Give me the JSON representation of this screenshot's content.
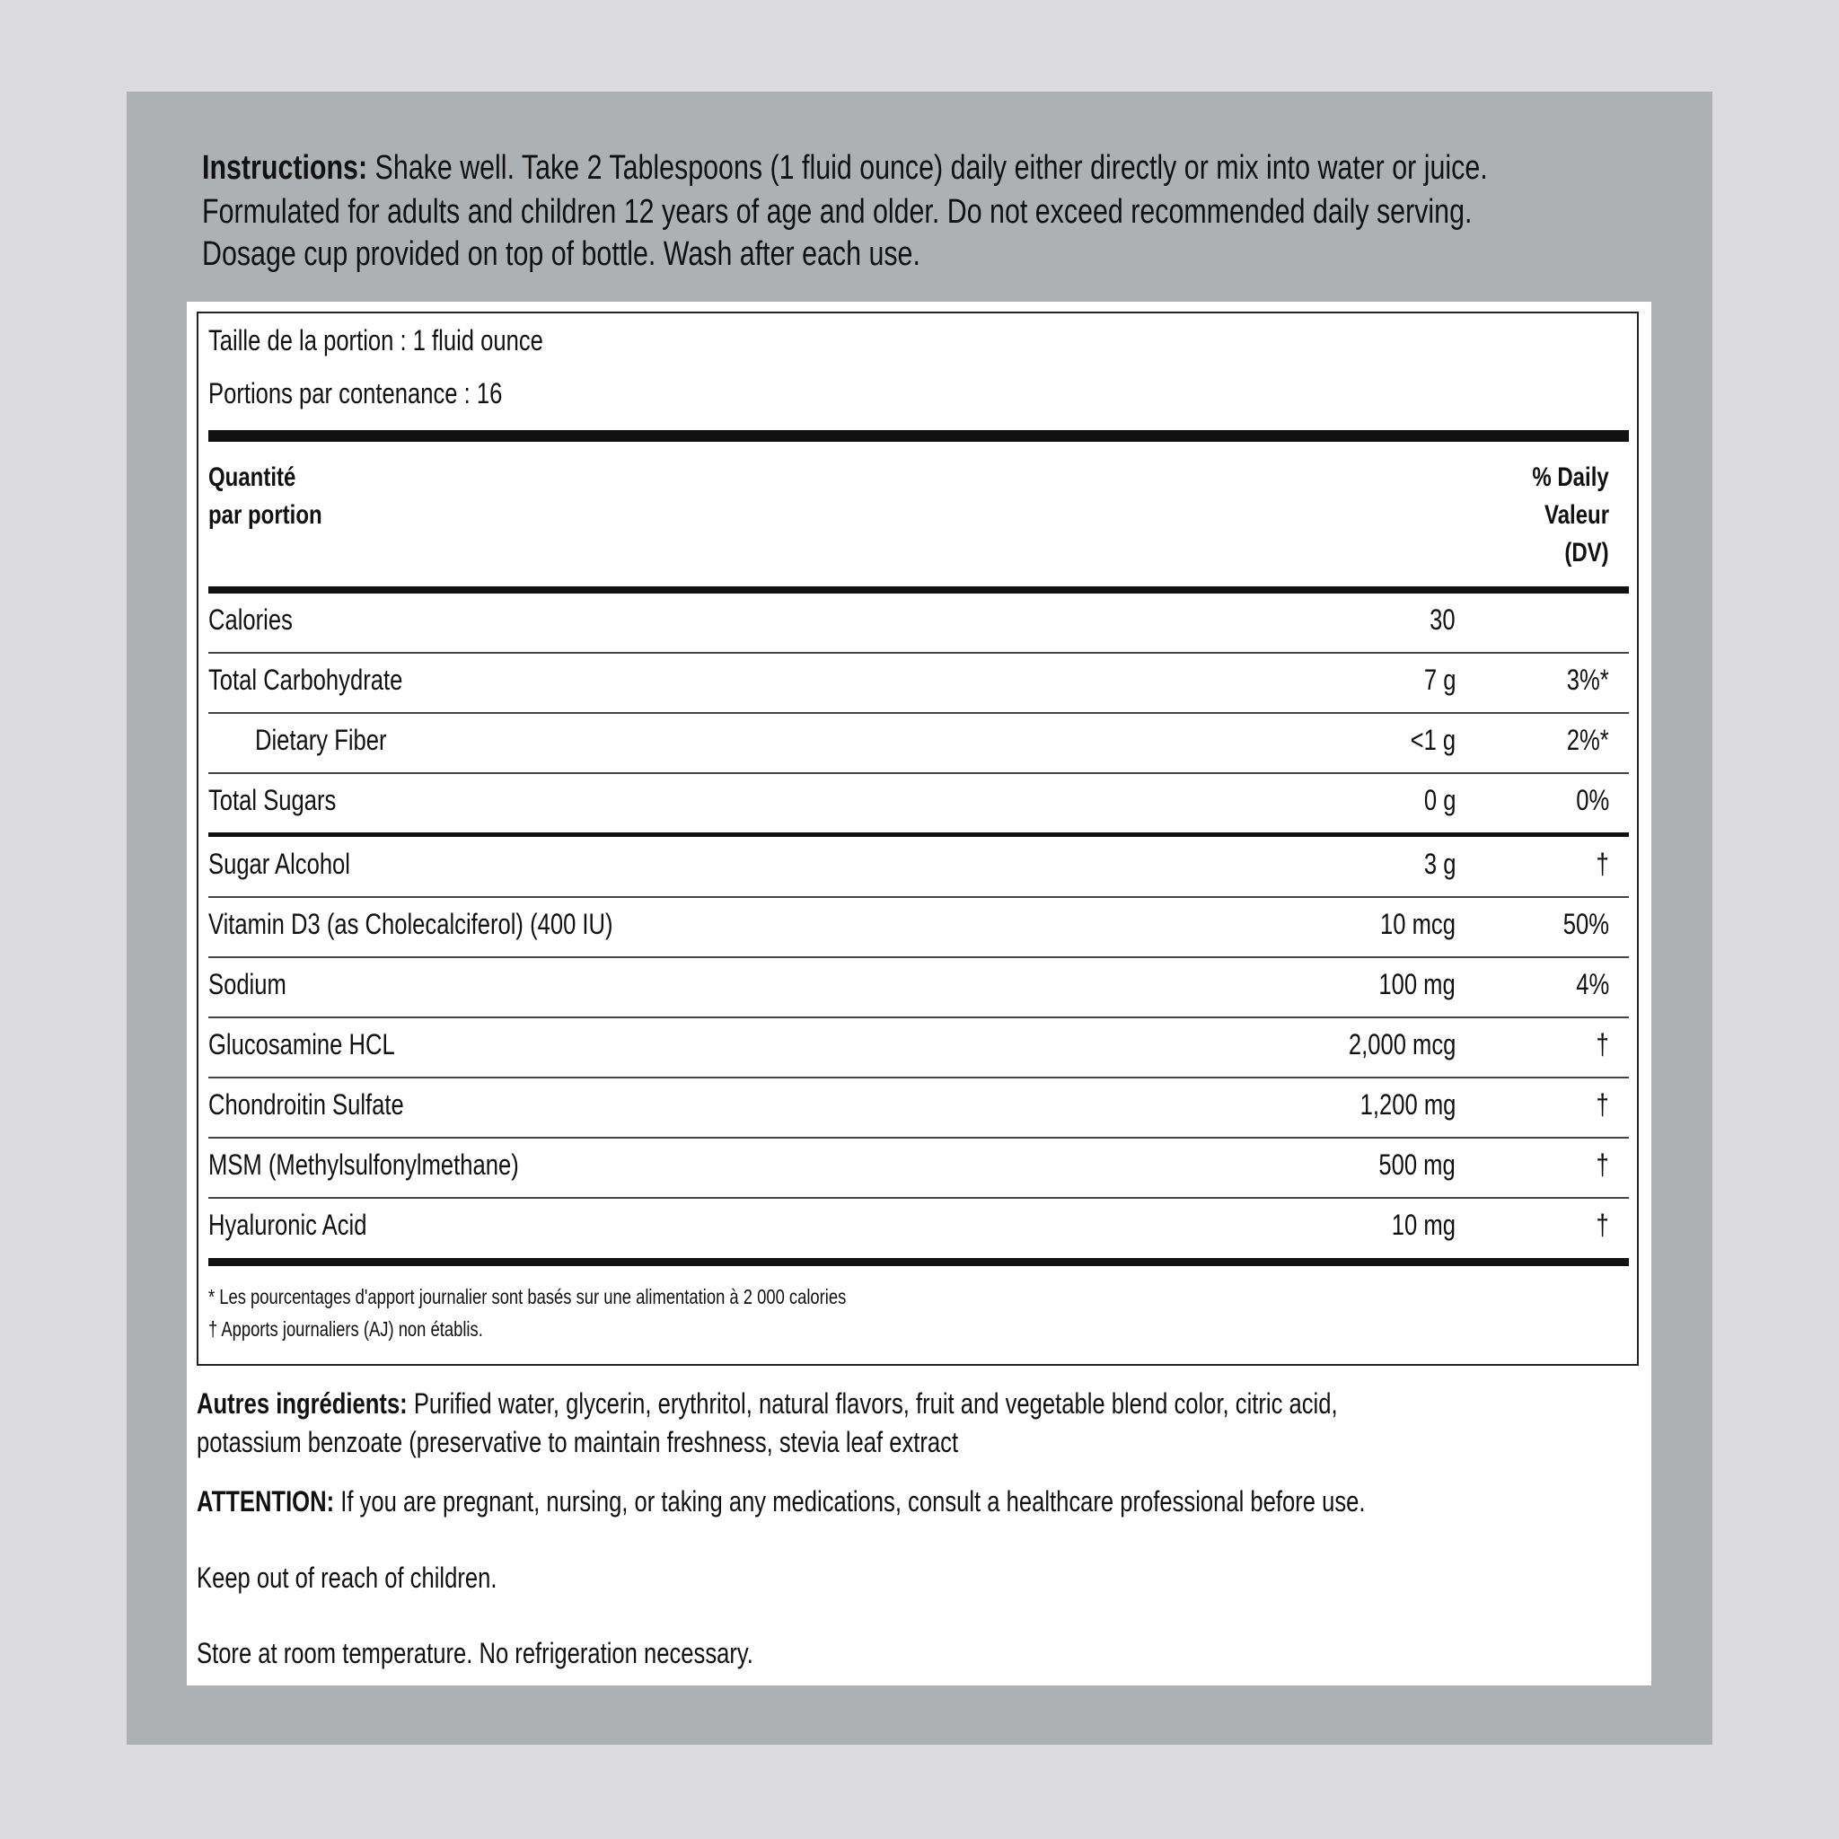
{
  "instructions": {
    "label": "Instructions:",
    "lines": [
      "Shake well. Take 2 Tablespoons (1 fluid ounce) daily either directly or mix into water or juice.",
      "Formulated for adults and children 12 years of age and older. Do not exceed recommended daily serving.",
      "Dosage cup provided on top of bottle. Wash after each use."
    ]
  },
  "facts": {
    "serving_size": "Taille de la portion : 1 fluid ounce",
    "servings": "Portions par contenance : 16",
    "header_left": [
      "Quantité",
      "par portion"
    ],
    "header_right": [
      "% Daily",
      "Valeur",
      "(DV)"
    ],
    "rows": [
      {
        "name": "Calories",
        "amount": "30",
        "dv": ""
      },
      {
        "name": "Total Carbohydrate",
        "amount": "7 g",
        "dv": "3%*"
      },
      {
        "name": "Dietary Fiber",
        "amount": "<1 g",
        "dv": "2%*"
      },
      {
        "name": "Total Sugars",
        "amount": "0 g",
        "dv": "0%"
      },
      {
        "name": "Sugar Alcohol",
        "amount": "3 g",
        "dv": "†"
      },
      {
        "name": "Vitamin D3 (as Cholecalciferol) (400 IU)",
        "amount": "10 mcg",
        "dv": "50%"
      },
      {
        "name": "Sodium",
        "amount": "100 mg",
        "dv": "4%"
      },
      {
        "name": "Glucosamine HCL",
        "amount": "2,000 mcg",
        "dv": "†"
      },
      {
        "name": "Chondroitin Sulfate",
        "amount": "1,200 mg",
        "dv": "†"
      },
      {
        "name": "MSM (Methylsulfonylmethane)",
        "amount": "500 mg",
        "dv": "†"
      },
      {
        "name": "Hyaluronic Acid",
        "amount": "10 mg",
        "dv": "†"
      }
    ],
    "footnotes": [
      "* Les pourcentages d'apport journalier sont basés sur une alimentation à 2 000 calories",
      "† Apports journaliers (AJ) non établis."
    ]
  },
  "other_ingredients": {
    "label": "Autres ingrédients:",
    "lines": [
      "Purified water, glycerin, erythritol, natural flavors, fruit and vegetable blend color, citric acid,",
      "potassium benzoate (preservative to maintain freshness, stevia leaf extract"
    ]
  },
  "attention": {
    "label": "ATTENTION:",
    "text": "If you are pregnant, nursing, or taking any medications, consult a healthcare professional before use."
  },
  "keep_out": "Keep out of reach of children.",
  "storage": "Store at room temperature. No refrigeration necessary."
}
